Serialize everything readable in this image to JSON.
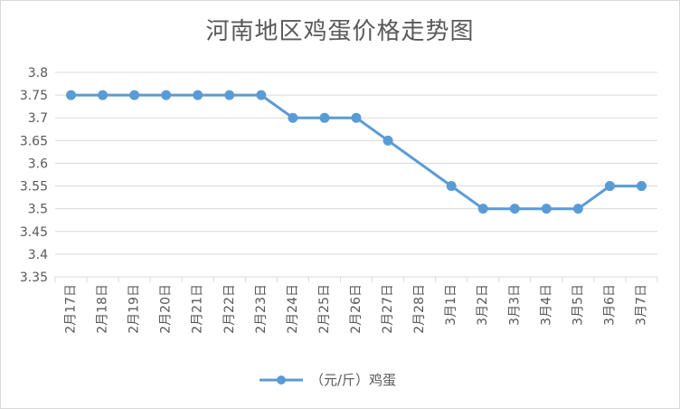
{
  "chart_data": {
    "type": "line",
    "title": "河南地区鸡蛋价格走势图",
    "categories": [
      "2月17日",
      "2月18日",
      "2月19日",
      "2月20日",
      "2月21日",
      "2月22日",
      "2月23日",
      "2月24日",
      "2月25日",
      "2月26日",
      "2月27日",
      "2月28日",
      "3月1日",
      "3月2日",
      "3月3日",
      "3月4日",
      "3月5日",
      "3月6日",
      "3月7日"
    ],
    "series": [
      {
        "name": "（元/斤）鸡蛋",
        "values": [
          3.75,
          3.75,
          3.75,
          3.75,
          3.75,
          3.75,
          3.75,
          3.7,
          3.7,
          3.7,
          3.65,
          null,
          3.55,
          3.5,
          3.5,
          3.5,
          3.5,
          3.55,
          3.55
        ]
      }
    ],
    "yticks": [
      "3.8",
      "3.75",
      "3.7",
      "3.65",
      "3.6",
      "3.55",
      "3.5",
      "3.45",
      "3.4",
      "3.35"
    ],
    "ylim": [
      3.35,
      3.8
    ],
    "grid": true,
    "legend_position": "bottom",
    "colors": {
      "series": "#5b9bd5",
      "grid": "#d9d9d9",
      "text": "#595959"
    }
  }
}
